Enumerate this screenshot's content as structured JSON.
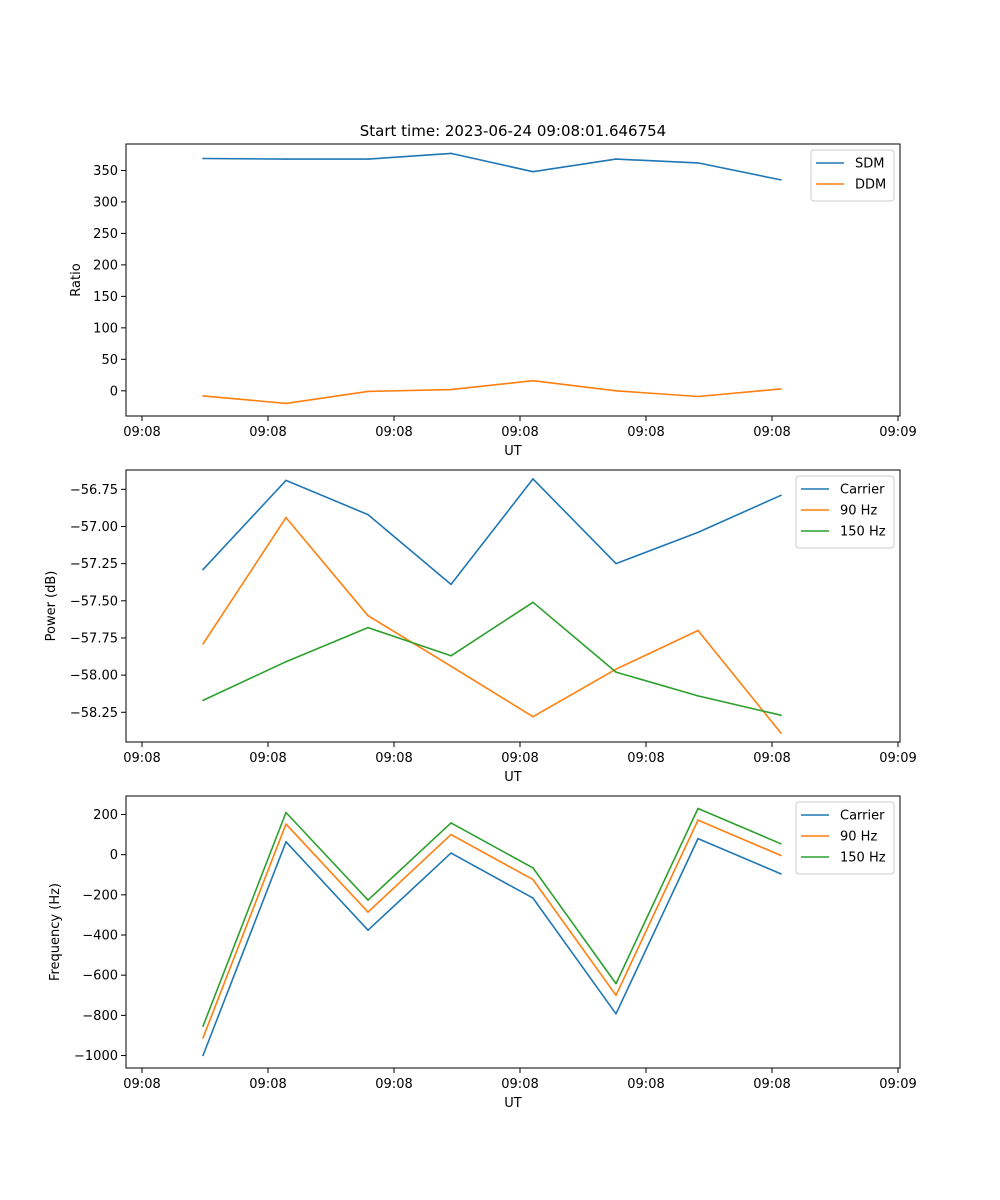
{
  "figure_title": "Start time: 2023-06-24 09:08:01.646754",
  "chart_data": [
    {
      "type": "line",
      "title": "Start time: 2023-06-24 09:08:01.646754",
      "xlabel": "UT",
      "ylabel": "Ratio",
      "x_tick_labels": [
        "09:08",
        "09:08",
        "09:08",
        "09:08",
        "09:08",
        "09:08",
        "09:09"
      ],
      "yticks": [
        0,
        50,
        100,
        150,
        200,
        250,
        300,
        350
      ],
      "ylim": [
        -40,
        392
      ],
      "grid": false,
      "legend_position": "top-right",
      "series": [
        {
          "name": "SDM",
          "color": "#1f77b4",
          "values": [
            369,
            368,
            368,
            377,
            348,
            368,
            362,
            335
          ]
        },
        {
          "name": "DDM",
          "color": "#ff7f0e",
          "values": [
            -8,
            -20,
            -1,
            2,
            16,
            0,
            -9,
            3
          ]
        }
      ]
    },
    {
      "type": "line",
      "title": "",
      "xlabel": "UT",
      "ylabel": "Power (dB)",
      "x_tick_labels": [
        "09:08",
        "09:08",
        "09:08",
        "09:08",
        "09:08",
        "09:08",
        "09:09"
      ],
      "yticks": [
        -58.25,
        -58.0,
        -57.75,
        -57.5,
        -57.25,
        -57.0,
        -56.75
      ],
      "ytick_labels": [
        "−58.25",
        "−58.00",
        "−57.75",
        "−57.50",
        "−57.25",
        "−57.00",
        "−56.75"
      ],
      "ylim": [
        -58.45,
        -56.62
      ],
      "grid": false,
      "legend_position": "top-right",
      "series": [
        {
          "name": "Carrier",
          "color": "#1f77b4",
          "values": [
            -57.29,
            -56.69,
            -56.92,
            -57.39,
            -56.68,
            -57.25,
            -57.04,
            -56.79
          ]
        },
        {
          "name": "90 Hz",
          "color": "#ff7f0e",
          "values": [
            -57.79,
            -56.94,
            -57.6,
            -57.94,
            -58.28,
            -57.96,
            -57.7,
            -58.39
          ]
        },
        {
          "name": "150 Hz",
          "color": "#2ca02c",
          "values": [
            -58.17,
            -57.91,
            -57.68,
            -57.87,
            -57.51,
            -57.98,
            -58.14,
            -58.27
          ]
        }
      ]
    },
    {
      "type": "line",
      "title": "",
      "xlabel": "UT",
      "ylabel": "Frequency (Hz)",
      "x_tick_labels": [
        "09:08",
        "09:08",
        "09:08",
        "09:08",
        "09:08",
        "09:08",
        "09:09"
      ],
      "yticks": [
        -1000,
        -800,
        -600,
        -400,
        -200,
        0,
        200
      ],
      "ytick_labels": [
        "−1000",
        "−800",
        "−600",
        "−400",
        "−200",
        "0",
        "200"
      ],
      "ylim": [
        -1062,
        292
      ],
      "grid": false,
      "legend_position": "top-right",
      "series": [
        {
          "name": "Carrier",
          "color": "#1f77b4",
          "values": [
            -1000,
            64,
            -376,
            8,
            -216,
            -792,
            80,
            -96
          ]
        },
        {
          "name": "90 Hz",
          "color": "#ff7f0e",
          "values": [
            -912,
            152,
            -286,
            100,
            -124,
            -700,
            172,
            -4
          ]
        },
        {
          "name": "150 Hz",
          "color": "#2ca02c",
          "values": [
            -854,
            210,
            -226,
            158,
            -66,
            -642,
            230,
            54
          ]
        }
      ]
    }
  ]
}
